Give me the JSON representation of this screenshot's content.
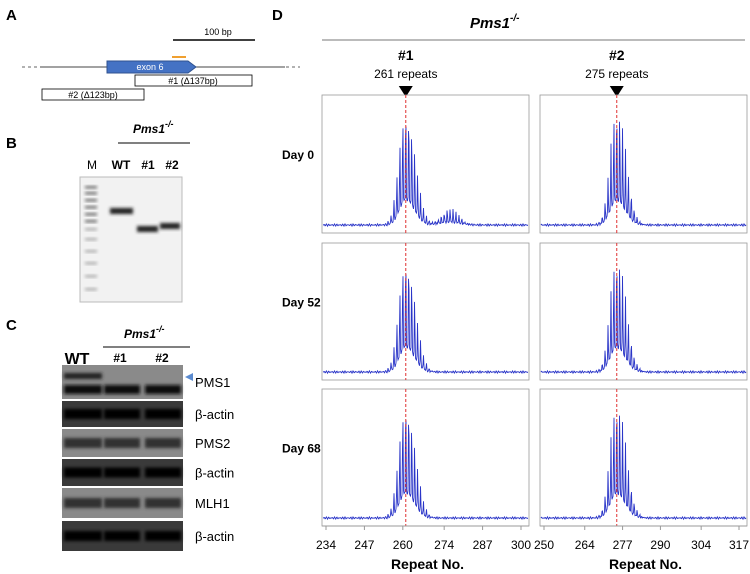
{
  "panel_a": {
    "label": "A",
    "scale": "100 bp",
    "exon": "exon 6",
    "deletions": [
      "#1 (Δ137bp)",
      "#2 (Δ123bp)"
    ]
  },
  "panel_b": {
    "label": "B",
    "genotype": "Pms1",
    "superscript": "-/-",
    "lanes": [
      "M",
      "WT",
      "#1",
      "#2"
    ]
  },
  "panel_c": {
    "label": "C",
    "genotype": "Pms1",
    "superscript": "-/-",
    "lanes": [
      "WT",
      "#1",
      "#2"
    ],
    "blots": [
      "PMS1",
      "β-actin",
      "PMS2",
      "β-actin",
      "MLH1",
      "β-actin"
    ]
  },
  "panel_d": {
    "label": "D",
    "genotype": "Pms1",
    "superscript": "-/-",
    "clones": [
      {
        "name": "#1",
        "repeats": {
          "value": 261,
          "label": "261 repeats"
        },
        "xticks": [
          234,
          247,
          260,
          274,
          287,
          300
        ]
      },
      {
        "name": "#2",
        "repeats": {
          "value": 275,
          "label": "275 repeats"
        },
        "xticks": [
          250,
          264,
          277,
          290,
          304,
          317
        ]
      }
    ],
    "days": [
      "Day 0",
      "Day 52",
      "Day 68"
    ],
    "xlabel": "Repeat No."
  }
}
